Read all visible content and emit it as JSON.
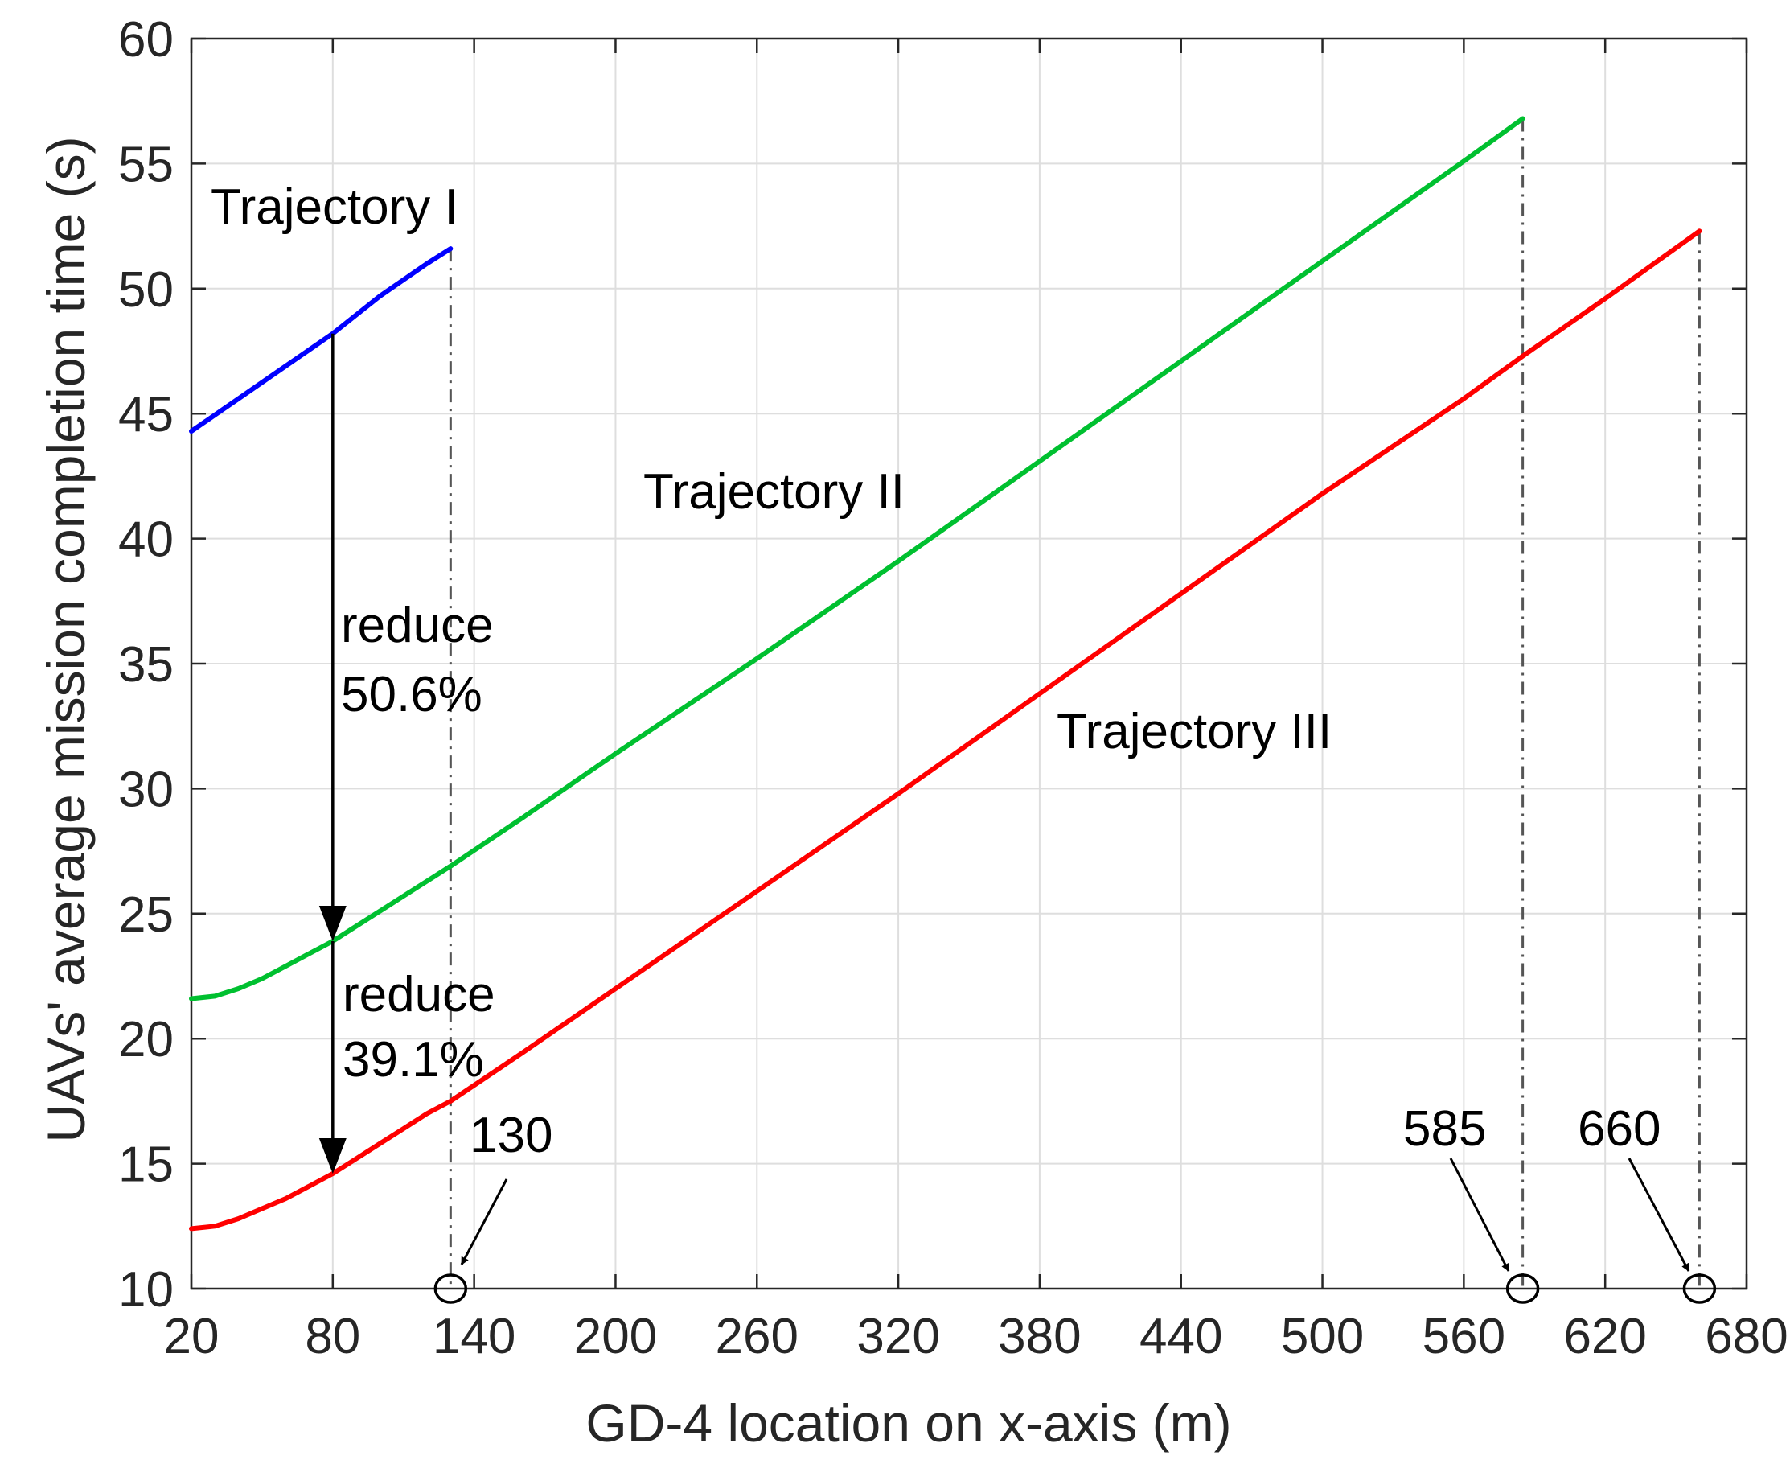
{
  "chart_data": {
    "type": "line",
    "title": "",
    "xlabel": "GD-4 location on x-axis (m)",
    "ylabel": "UAVs' average mission completion time (s)",
    "xlim": [
      20,
      680
    ],
    "ylim": [
      10,
      60
    ],
    "grid": true,
    "xticks": [
      20,
      80,
      140,
      200,
      260,
      320,
      380,
      440,
      500,
      560,
      620,
      680
    ],
    "yticks": [
      10,
      15,
      20,
      25,
      30,
      35,
      40,
      45,
      50,
      55,
      60
    ],
    "series": [
      {
        "color": "#0000ff",
        "x": [
          20,
          40,
          60,
          80,
          100,
          120,
          130
        ],
        "y": [
          44.3,
          45.6,
          46.9,
          48.2,
          49.7,
          51.0,
          51.6
        ]
      },
      {
        "color": "#00c030",
        "x": [
          20,
          30,
          40,
          50,
          60,
          70,
          80,
          90,
          100,
          110,
          120,
          130,
          160,
          200,
          260,
          320,
          380,
          440,
          500,
          560,
          585
        ],
        "y": [
          21.6,
          21.7,
          22.0,
          22.4,
          22.9,
          23.4,
          23.9,
          24.5,
          25.1,
          25.7,
          26.3,
          26.9,
          28.8,
          31.4,
          35.2,
          39.1,
          43.1,
          47.1,
          51.1,
          55.1,
          56.8
        ]
      },
      {
        "color": "#ff0000",
        "x": [
          20,
          30,
          40,
          50,
          60,
          70,
          80,
          90,
          100,
          110,
          120,
          130,
          160,
          200,
          260,
          320,
          380,
          440,
          500,
          560,
          585,
          620,
          660
        ],
        "y": [
          12.4,
          12.5,
          12.8,
          13.2,
          13.6,
          14.1,
          14.6,
          15.2,
          15.8,
          16.4,
          17.0,
          17.5,
          19.4,
          22.0,
          25.9,
          29.8,
          33.8,
          37.8,
          41.8,
          45.6,
          47.3,
          49.6,
          52.3
        ]
      }
    ],
    "vlines": [
      {
        "x": 130,
        "y_top": 51.6
      },
      {
        "x": 585,
        "y_top": 56.8
      },
      {
        "x": 660,
        "y_top": 52.3
      }
    ],
    "markers": [
      {
        "x": 130,
        "y": 10
      },
      {
        "x": 585,
        "y": 10
      },
      {
        "x": 660,
        "y": 10
      }
    ],
    "reduction_arrows": [
      {
        "x": 80,
        "y_from": 48.2,
        "y_to": 23.9
      },
      {
        "x": 80,
        "y_from": 23.9,
        "y_to": 14.6
      }
    ],
    "annotations": {
      "trajectory_1": "Trajectory I",
      "trajectory_2": "Trajectory II",
      "trajectory_3": "Trajectory III",
      "reduce_1_line1": "reduce",
      "reduce_1_line2": "50.6%",
      "reduce_2_line1": "reduce",
      "reduce_2_line2": "39.1%",
      "mark_130": "130",
      "mark_585": "585",
      "mark_660": "660"
    }
  }
}
